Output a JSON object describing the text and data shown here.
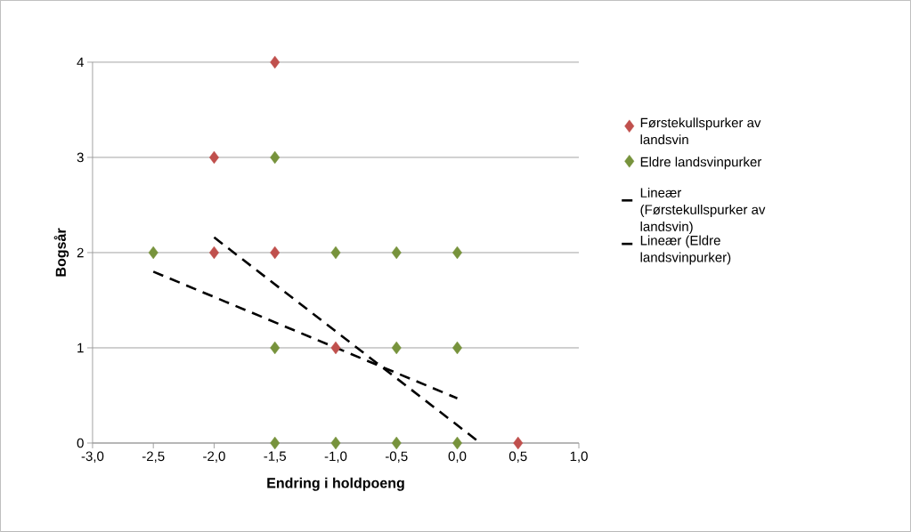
{
  "chart_data": {
    "type": "scatter",
    "xlabel": "Endring i holdpoeng",
    "ylabel": "Bogsår",
    "series": [
      {
        "name": "Førstekullspurker av landsvin",
        "color": "#c0504d",
        "marker": "diamond",
        "x": [
          -1.5,
          -2,
          -2,
          -1.5,
          -1,
          0.5
        ],
        "values": [
          4,
          3,
          2,
          2,
          1,
          0
        ]
      },
      {
        "name": "Eldre landsvinpurker",
        "color": "#77933c",
        "marker": "diamond",
        "x": [
          -1.5,
          -2.5,
          -1,
          -0.5,
          0,
          -1.5,
          -0.5,
          0,
          -1.5,
          -1,
          -0.5,
          0
        ],
        "values": [
          3,
          2,
          2,
          2,
          2,
          1,
          1,
          1,
          0,
          0,
          0,
          0
        ]
      },
      {
        "name": "Lineær (Førstekullspurker av landsvin)",
        "type": "line",
        "color": "#000000",
        "marker": "none",
        "line_style": "dashed",
        "x": [
          -2,
          0.19
        ],
        "values": [
          2.16,
          0
        ]
      },
      {
        "name": "Lineær (Eldre landsvinpurker)",
        "type": "line",
        "color": "#000000",
        "marker": "none",
        "line_style": "dashed",
        "x": [
          -2.5,
          0
        ],
        "values": [
          1.8,
          0.47
        ]
      }
    ],
    "xlim": [
      -3,
      1
    ],
    "ylim": [
      0,
      4
    ],
    "xticks": [
      {
        "value": -3,
        "label": "-3,0"
      },
      {
        "value": -2.5,
        "label": "-2,5"
      },
      {
        "value": -2,
        "label": "-2,0"
      },
      {
        "value": -1.5,
        "label": "-1,5"
      },
      {
        "value": -1,
        "label": "-1,0"
      },
      {
        "value": -0.5,
        "label": "-0,5"
      },
      {
        "value": 0,
        "label": "0,0"
      },
      {
        "value": 0.5,
        "label": "0,5"
      },
      {
        "value": 1,
        "label": "1,0"
      }
    ],
    "yticks": [
      0,
      1,
      2,
      3,
      4
    ],
    "grid": "y",
    "legend": "right"
  }
}
